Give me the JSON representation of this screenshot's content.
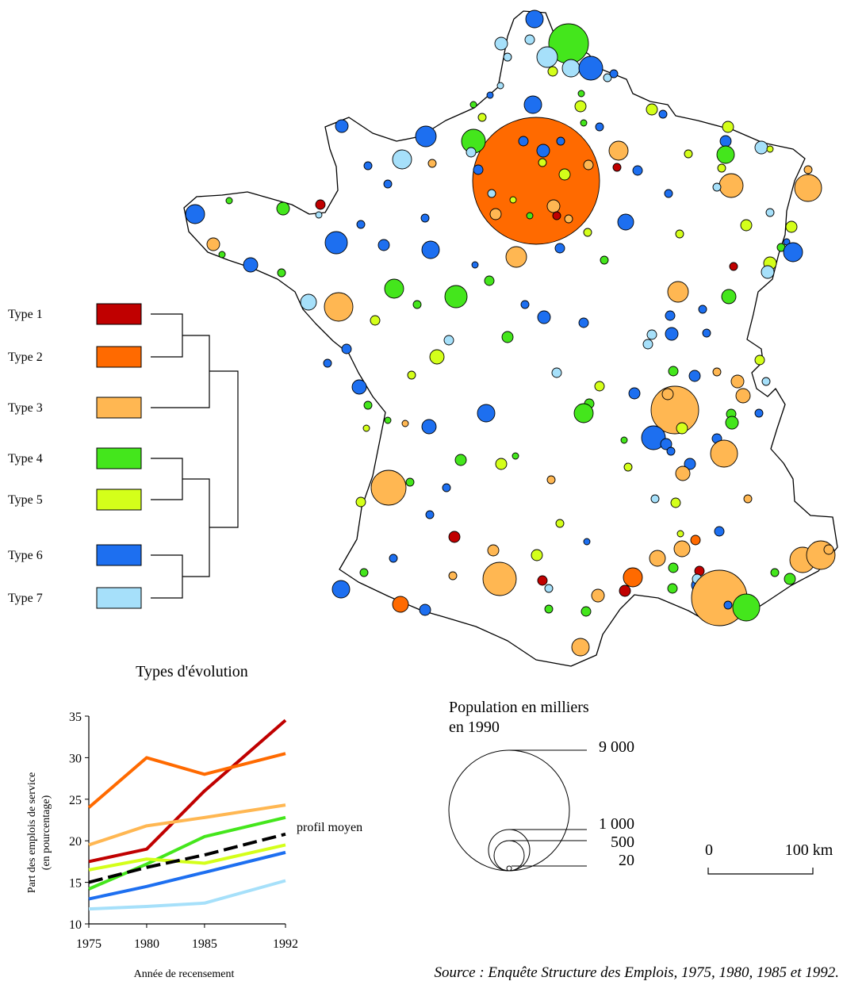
{
  "legend": {
    "types": [
      {
        "label": "Type 1",
        "color": "#c00000"
      },
      {
        "label": "Type 2",
        "color": "#ff6a00"
      },
      {
        "label": "Type 3",
        "color": "#ffb752"
      },
      {
        "label": "Type 4",
        "color": "#44e61c"
      },
      {
        "label": "Type 5",
        "color": "#d4ff1a"
      },
      {
        "label": "Type 6",
        "color": "#1d6ff0"
      },
      {
        "label": "Type 7",
        "color": "#a6e0fa"
      }
    ],
    "title": "Types d'évolution"
  },
  "population_legend": {
    "title_line1": "Population en milliers",
    "title_line2": "en 1990",
    "values": [
      "9 000",
      "1 000",
      "500",
      "20"
    ]
  },
  "scale_bar": {
    "label_start": "0",
    "label_end": "100 km"
  },
  "source": "Source : Enquête Structure des Emplois, 1975, 1980, 1985 et 1992.",
  "chart_data": {
    "type": "line",
    "x": [
      1975,
      1980,
      1985,
      1992
    ],
    "x_tick_labels": [
      "1975",
      "1980",
      "1985",
      "1992"
    ],
    "xlabel": "Année de recensement",
    "ylabel_line1": "Part des emplois de service",
    "ylabel_line2": "(en pourcentage)",
    "ylim": [
      10,
      35
    ],
    "y_ticks": [
      10,
      15,
      20,
      25,
      30,
      35
    ],
    "series": [
      {
        "values": [
          17.5,
          19,
          26,
          34.5
        ],
        "color": "#c00000",
        "dashed": false
      },
      {
        "values": [
          24,
          30,
          28,
          30.5
        ],
        "color": "#ff6a00",
        "dashed": false
      },
      {
        "values": [
          19.5,
          21.8,
          22.8,
          24.3
        ],
        "color": "#ffb752",
        "dashed": false
      },
      {
        "values": [
          14.2,
          17.2,
          20.5,
          22.8
        ],
        "color": "#44e61c",
        "dashed": false
      },
      {
        "values": [
          16.5,
          17.8,
          17.3,
          19.5
        ],
        "color": "#d4ff1a",
        "dashed": false
      },
      {
        "values": [
          13,
          14.5,
          16.2,
          18.6
        ],
        "color": "#1d6ff0",
        "dashed": false
      },
      {
        "values": [
          11.8,
          12.1,
          12.5,
          15.2
        ],
        "color": "#a6e0fa",
        "dashed": false
      },
      {
        "name": "profil moyen",
        "values": [
          15,
          16.8,
          18.3,
          20.8
        ],
        "color": "#000000",
        "dashed": true
      }
    ]
  }
}
